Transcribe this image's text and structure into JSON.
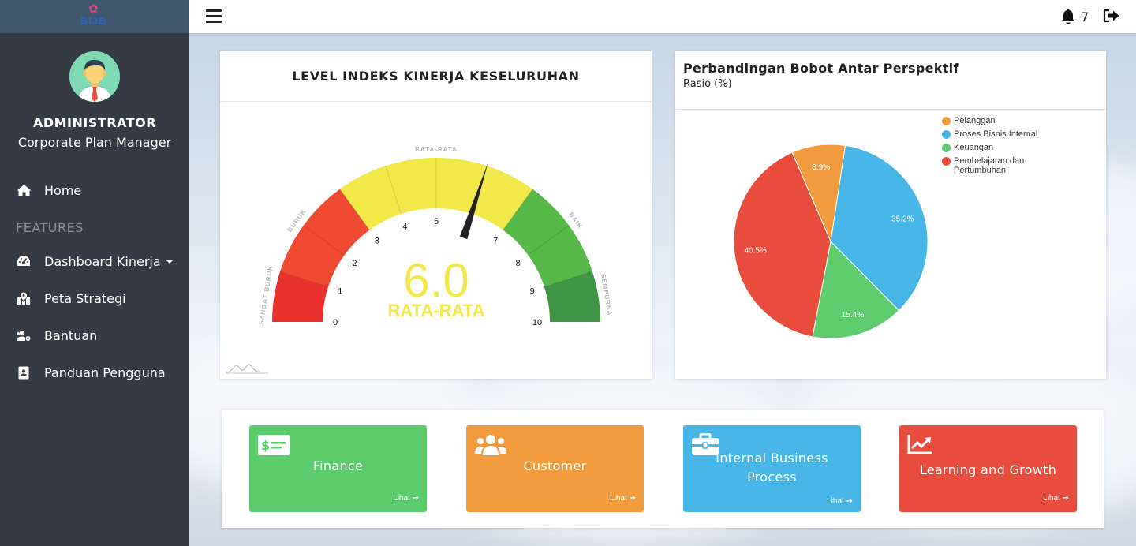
{
  "app": {
    "logo_text": "BIJB"
  },
  "user": {
    "role": "ADMINISTRATOR",
    "title": "Corporate Plan Manager"
  },
  "sidebar": {
    "home_label": "Home",
    "section_label": "FEATURES",
    "items": [
      {
        "label": "Dashboard Kinerja",
        "icon": "dashboard-icon"
      },
      {
        "label": "Peta Strategi",
        "icon": "map-icon"
      },
      {
        "label": "Bantuan",
        "icon": "users-cog-icon"
      },
      {
        "label": "Panduan Pengguna",
        "icon": "id-card-icon"
      }
    ]
  },
  "topbar": {
    "notification_count": "7"
  },
  "gauge": {
    "title": "LEVEL INDEKS KINERJA KESELURUHAN",
    "value": 6.0,
    "value_text": "6.0",
    "status_text": "RATA-RATA",
    "min": 0,
    "max": 10,
    "ticks": [
      "0",
      "1",
      "2",
      "3",
      "4",
      "5",
      "7",
      "8",
      "9",
      "10"
    ],
    "bands": [
      {
        "label": "SANGAT BURUK",
        "from": 0,
        "to": 1,
        "color": "#e8302d"
      },
      {
        "label": "BURUK",
        "from": 1,
        "to": 3,
        "color": "#ee4a32"
      },
      {
        "label": "RATA-RATA",
        "from": 3,
        "to": 7,
        "color": "#f2e84a"
      },
      {
        "label": "BAIK",
        "from": 7,
        "to": 9,
        "color": "#56b948"
      },
      {
        "label": "SEMPURNA",
        "from": 9,
        "to": 10,
        "color": "#409446"
      }
    ]
  },
  "pie": {
    "title": "Perbandingan Bobot Antar Perspektif",
    "subtitle": "Rasio (%)"
  },
  "chart_data": {
    "type": "pie",
    "title": "Perbandingan Bobot Antar Perspektif",
    "subtitle": "Rasio (%)",
    "legend_position": "top-right",
    "slices": [
      {
        "label": "Pelanggan",
        "value": 8.9,
        "value_text": "8.9%",
        "color": "#f29b3e"
      },
      {
        "label": "Proses Bisnis Internal",
        "value": 35.2,
        "value_text": "35.2%",
        "color": "#47b5e6"
      },
      {
        "label": "Keuangan",
        "value": 15.4,
        "value_text": "15.4%",
        "color": "#5ecb6d"
      },
      {
        "label": "Pembelajaran dan Pertumbuhan",
        "value": 40.5,
        "value_text": "40.5%",
        "color": "#e84c3d"
      }
    ]
  },
  "tiles": [
    {
      "label": "Finance",
      "link": "Lihat",
      "color": "#5ccb6b"
    },
    {
      "label": "Customer",
      "link": "Lihat",
      "color": "#f29b3d"
    },
    {
      "label": "Internal Business Process",
      "link": "Lihat",
      "color": "#47b5e6"
    },
    {
      "label": "Learning and Growth",
      "link": "Lihat",
      "color": "#e84c3d"
    }
  ]
}
